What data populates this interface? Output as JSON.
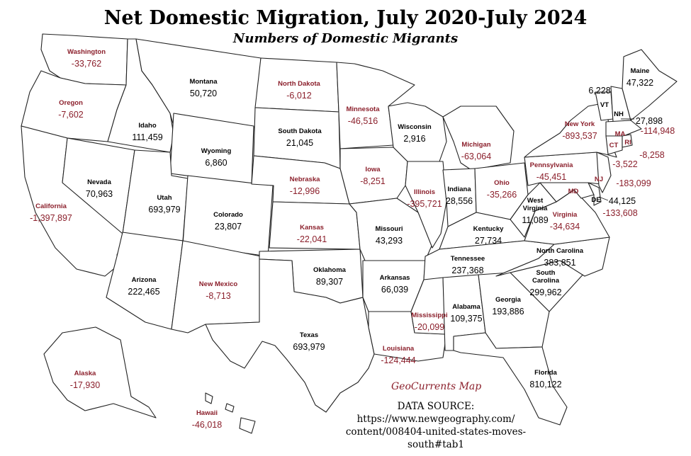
{
  "title": "Net Domestic Migration, July 2020-July 2024",
  "subtitle": "Numbers of Domestic Migrants",
  "credit": "GeoCurrents Map",
  "source": {
    "label": "DATA SOURCE:",
    "line1": "https://www.newgeography.com/",
    "line2": "content/008404-united-states-moves-",
    "line3": "south#tab1"
  },
  "colors": {
    "positive": "#000000",
    "negative": "#8b1f2b",
    "state_fill": "#ffffff",
    "border": "#222222"
  },
  "states": {
    "WA": {
      "name": "Washington",
      "value": "-33,762"
    },
    "OR": {
      "name": "Oregon",
      "value": "-7,602"
    },
    "CA": {
      "name": "California",
      "value": "-1,397,897"
    },
    "ID": {
      "name": "Idaho",
      "value": "111,459"
    },
    "NV": {
      "name": "Nevada",
      "value": "70,963"
    },
    "MT": {
      "name": "Montana",
      "value": "50,720"
    },
    "WY": {
      "name": "Wyoming",
      "value": "6,860"
    },
    "UT": {
      "name": "Utah",
      "value": "693,979"
    },
    "AZ": {
      "name": "Arizona",
      "value": "222,465"
    },
    "CO": {
      "name": "Colorado",
      "value": "23,807"
    },
    "NM": {
      "name": "New Mexico",
      "value": "-8,713"
    },
    "ND": {
      "name": "North Dakota",
      "value": "-6,012"
    },
    "SD": {
      "name": "South Dakota",
      "value": "21,045"
    },
    "NE": {
      "name": "Nebraska",
      "value": "-12,996"
    },
    "KS": {
      "name": "Kansas",
      "value": "-22,041"
    },
    "OK": {
      "name": "Oklahoma",
      "value": "89,307"
    },
    "TX": {
      "name": "Texas",
      "value": "693,979"
    },
    "MN": {
      "name": "Minnesota",
      "value": "-46,516"
    },
    "IA": {
      "name": "Iowa",
      "value": "-8,251"
    },
    "MO": {
      "name": "Missouri",
      "value": "43,293"
    },
    "AR": {
      "name": "Arkansas",
      "value": "66,039"
    },
    "LA": {
      "name": "Louisiana",
      "value": "-124,444"
    },
    "WI": {
      "name": "Wisconsin",
      "value": "2,916"
    },
    "IL": {
      "name": "Illinois",
      "value": "-395,721"
    },
    "MI": {
      "name": "Michigan",
      "value": "-63,064"
    },
    "IN": {
      "name": "Indiana",
      "value": "28,556"
    },
    "OH": {
      "name": "Ohio",
      "value": "-35,266"
    },
    "KY": {
      "name": "Kentucky",
      "value": "27,734"
    },
    "TN": {
      "name": "Tennessee",
      "value": "237,368"
    },
    "MS": {
      "name": "Mississippi",
      "value": "-20,099"
    },
    "AL": {
      "name": "Alabama",
      "value": "109,375"
    },
    "GA": {
      "name": "Georgia",
      "value": "193,886"
    },
    "FL": {
      "name": "Florida",
      "value": "810,122"
    },
    "SC": {
      "name": "South Carolina",
      "value": "299,962"
    },
    "NC": {
      "name": "North Carolina",
      "value": "383,851"
    },
    "VA": {
      "name": "Virginia",
      "value": "-34,634"
    },
    "WV": {
      "name": "West Virginia",
      "value": "11,089"
    },
    "PA": {
      "name": "Pennsylvania",
      "value": "-45,451"
    },
    "NY": {
      "name": "New York",
      "value": "-893,537"
    },
    "ME": {
      "name": "Maine",
      "value": "47,322"
    },
    "AK": {
      "name": "Alaska",
      "value": "-17,930"
    },
    "HI": {
      "name": "Hawaii",
      "value": "-46,018"
    },
    "VT": {
      "name": "VT",
      "value": "6,228"
    },
    "NH": {
      "name": "NH",
      "value": "27,898"
    },
    "MA": {
      "name": "MA",
      "value": "-114,948"
    },
    "RI": {
      "name": "RI",
      "value": "-8,258"
    },
    "CT": {
      "name": "CT",
      "value": "-3,522"
    },
    "NJ": {
      "name": "NJ",
      "value": "-183,099"
    },
    "DE": {
      "name": "DE",
      "value": "44,125"
    },
    "MD": {
      "name": "MD",
      "value": "-133,608"
    }
  }
}
